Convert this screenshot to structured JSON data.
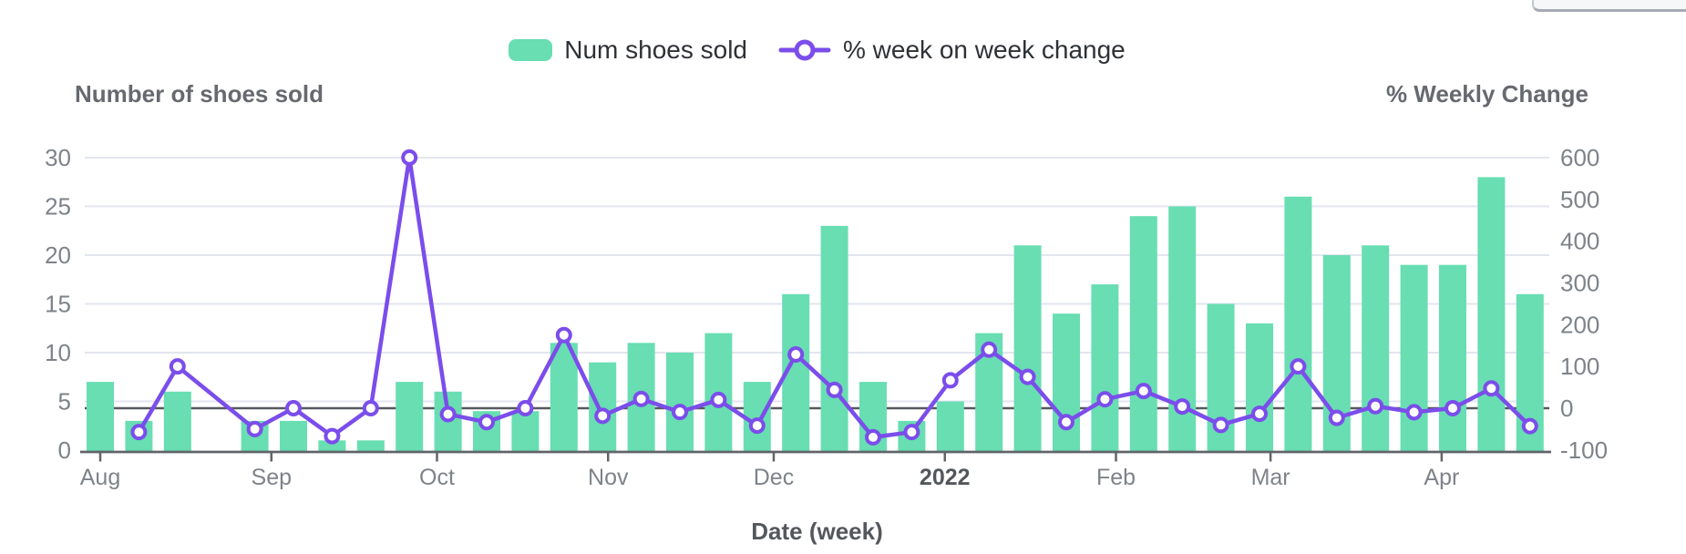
{
  "top_right_partial_button": {
    "visible": true
  },
  "legend": {
    "items": [
      {
        "label": "Num shoes sold",
        "type": "bar"
      },
      {
        "label": "% week on week change",
        "type": "line"
      }
    ]
  },
  "axes": {
    "left_title": "Number of shoes sold",
    "right_title": "% Weekly Change",
    "x_title": "Date (week)"
  },
  "colors": {
    "bar": "#68deb2",
    "line": "#7b4deb",
    "grid": "#e3e6f0",
    "zero_line": "#55585e",
    "axis_line": "#606469",
    "tick_text": "#7e838a",
    "bold_tick_text": "#53575c"
  },
  "chart_data": {
    "type": "combo_bar_line_dual_axis",
    "title": "",
    "x_axis": {
      "label": "Date (week)",
      "unit": "week",
      "n_slots": 38,
      "days_per_slot": 7,
      "note": "weekly data Aug 2021 - Apr 2022; slot index 3 has no data (missing week)",
      "ticks": [
        {
          "label": "Aug",
          "day": 0,
          "bold": false
        },
        {
          "label": "Sep",
          "day": 31,
          "bold": false
        },
        {
          "label": "Oct",
          "day": 61,
          "bold": false
        },
        {
          "label": "Nov",
          "day": 92,
          "bold": false
        },
        {
          "label": "Dec",
          "day": 122,
          "bold": false
        },
        {
          "label": "2022",
          "day": 153,
          "bold": true
        },
        {
          "label": "Feb",
          "day": 184,
          "bold": false
        },
        {
          "label": "Mar",
          "day": 212,
          "bold": false
        },
        {
          "label": "Apr",
          "day": 243,
          "bold": false
        }
      ]
    },
    "y_left": {
      "label": "Number of shoes sold",
      "range": [
        0,
        30
      ],
      "ticks": [
        0,
        5,
        10,
        15,
        20,
        25,
        30
      ]
    },
    "y_right": {
      "label": "% Weekly Change",
      "range": [
        -100,
        600
      ],
      "ticks": [
        -100,
        0,
        100,
        200,
        300,
        400,
        500,
        600
      ]
    },
    "grid": true,
    "legend_position": "top-center",
    "series": [
      {
        "name": "Num shoes sold",
        "type": "bar",
        "axis": "left",
        "values": [
          7,
          3,
          6,
          null,
          3,
          3,
          1,
          1,
          7,
          6,
          4,
          4,
          11,
          9,
          11,
          10,
          12,
          7,
          16,
          23,
          7,
          3,
          5,
          12,
          21,
          14,
          17,
          24,
          25,
          15,
          13,
          26,
          20,
          21,
          19,
          19,
          28,
          16
        ]
      },
      {
        "name": "% week on week change",
        "type": "line",
        "axis": "right",
        "values": [
          null,
          -57.1,
          100,
          null,
          -50,
          0,
          -66.7,
          0,
          600,
          -14.3,
          -33.3,
          0,
          175,
          -18.2,
          22.2,
          -9.1,
          20,
          -41.7,
          128.6,
          43.8,
          -69.6,
          -57.1,
          66.7,
          140,
          75,
          -33.3,
          21.4,
          41.2,
          4.2,
          -40,
          -13.3,
          100,
          -23.1,
          5,
          -9.5,
          0,
          47.4,
          -42.9
        ]
      }
    ]
  }
}
